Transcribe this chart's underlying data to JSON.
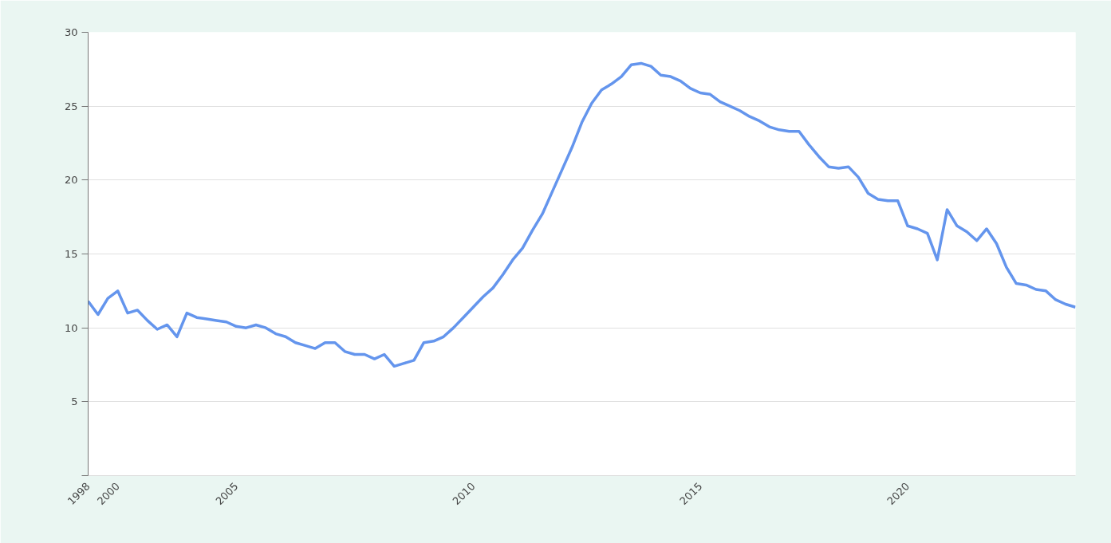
{
  "chart_data": {
    "type": "line",
    "categories": [
      "1998",
      null,
      null,
      "2000",
      null,
      null,
      null,
      null,
      null,
      null,
      null,
      null,
      null,
      null,
      null,
      "2005",
      null,
      null,
      null,
      null,
      null,
      null,
      null,
      null,
      null,
      null,
      null,
      null,
      null,
      null,
      null,
      null,
      null,
      null,
      null,
      null,
      null,
      null,
      null,
      "2010",
      null,
      null,
      null,
      null,
      null,
      null,
      null,
      null,
      null,
      null,
      null,
      null,
      null,
      null,
      null,
      null,
      null,
      null,
      null,
      null,
      null,
      null,
      "2015",
      null,
      null,
      null,
      null,
      null,
      null,
      null,
      null,
      null,
      null,
      null,
      null,
      null,
      null,
      null,
      null,
      null,
      null,
      null,
      null,
      "2020",
      null,
      null,
      null,
      null,
      null,
      null,
      null,
      null,
      null,
      null,
      null,
      null,
      null,
      null,
      null,
      null,
      null
    ],
    "series": [
      {
        "color": "#6495ed",
        "values": [
          11.8,
          10.9,
          12.0,
          12.5,
          11.0,
          11.2,
          10.5,
          9.9,
          10.2,
          9.4,
          11.0,
          10.7,
          10.6,
          10.5,
          10.4,
          10.1,
          10.0,
          10.2,
          10.0,
          9.6,
          9.4,
          9.0,
          8.8,
          8.6,
          9.0,
          9.0,
          8.4,
          8.2,
          8.2,
          7.9,
          8.2,
          7.4,
          7.6,
          7.8,
          9.0,
          9.1,
          9.4,
          10.0,
          10.7,
          11.4,
          12.1,
          12.7,
          13.6,
          14.6,
          15.4,
          16.6,
          17.7,
          19.2,
          20.7,
          22.2,
          23.9,
          25.2,
          26.1,
          26.5,
          27.0,
          27.8,
          27.9,
          27.7,
          27.1,
          27.0,
          26.7,
          26.2,
          25.9,
          25.8,
          25.3,
          25.0,
          24.7,
          24.3,
          24.0,
          23.6,
          23.4,
          23.3,
          23.3,
          22.4,
          21.6,
          20.9,
          20.8,
          20.9,
          20.2,
          19.1,
          18.7,
          18.6,
          18.6,
          16.9,
          16.7,
          16.4,
          14.6,
          18.0,
          16.9,
          16.5,
          15.9,
          16.7,
          15.7,
          14.1,
          13.0,
          12.9,
          12.6,
          12.5,
          11.9,
          11.6,
          11.4
        ]
      }
    ],
    "ylim": [
      0,
      30
    ],
    "yticks": [
      {
        "value": 0,
        "label": null
      },
      5,
      10,
      15,
      20,
      25,
      30
    ],
    "grid": "y",
    "line_style": "solid"
  }
}
